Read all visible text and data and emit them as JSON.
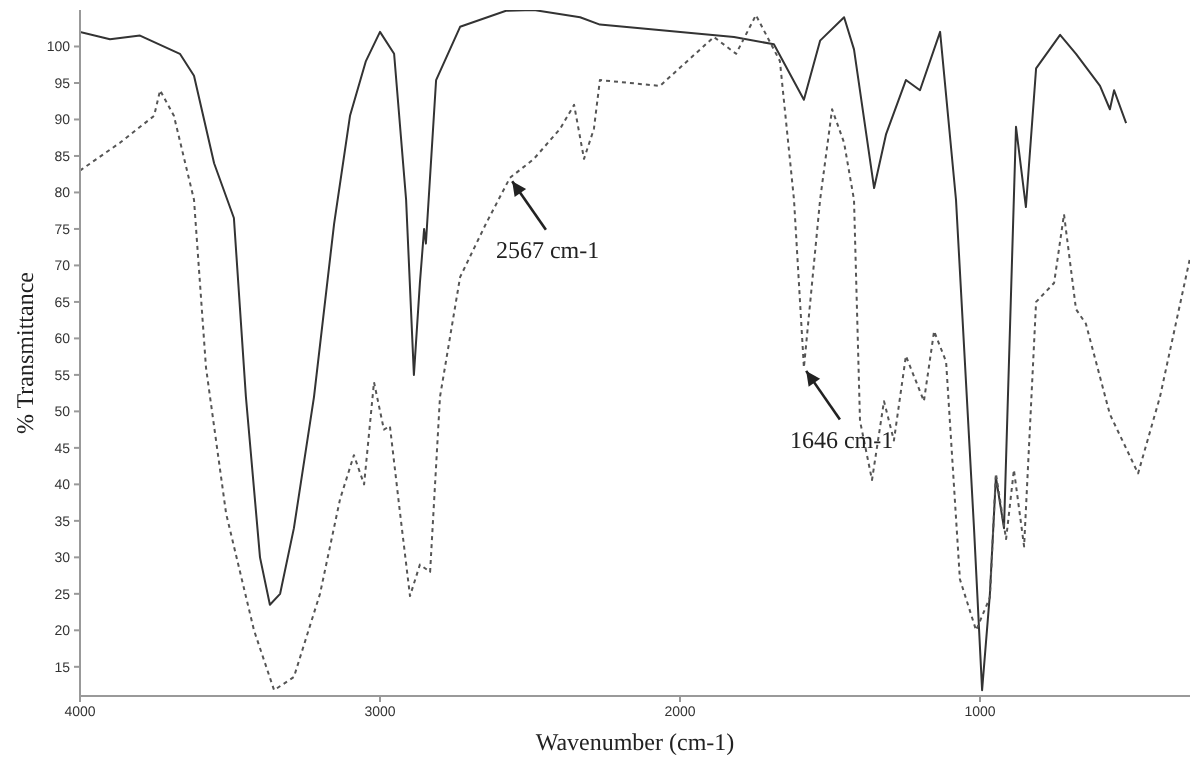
{
  "chart_data": {
    "type": "line",
    "xlabel": "Wavenumber (cm-1)",
    "ylabel": "% Transmittance",
    "xlim": [
      4000,
      300
    ],
    "xticks": [
      4000,
      3000,
      2000,
      1000
    ],
    "ylim": [
      11,
      105
    ],
    "yticks": [
      15,
      20,
      25,
      30,
      35,
      40,
      45,
      50,
      55,
      60,
      65,
      70,
      75,
      80,
      85,
      90,
      95,
      100
    ],
    "marker": "none",
    "series": [
      {
        "color": "#333333",
        "line_style": "solid",
        "x": [
          4000,
          3900,
          3800,
          3667,
          3620,
          3553,
          3487,
          3447,
          3400,
          3367,
          3333,
          3287,
          3220,
          3153,
          3100,
          3047,
          3000,
          2953,
          2913,
          2887,
          2867,
          2853,
          2847,
          2813,
          2733,
          2580,
          2487,
          2333,
          2267,
          1820,
          1687,
          1587,
          1533,
          1453,
          1420,
          1353,
          1313,
          1247,
          1200,
          1133,
          1080,
          1020,
          993,
          967,
          947,
          920,
          880,
          847,
          813,
          733,
          680,
          600,
          567,
          553,
          513
        ],
        "values": [
          102,
          101,
          101.5,
          99,
          96,
          84,
          76.5,
          52,
          30,
          23.5,
          25,
          34,
          52,
          75.7,
          90.5,
          98,
          102,
          99,
          79,
          55,
          67.6,
          75,
          73,
          95.4,
          102.7,
          104.9,
          105,
          104,
          103,
          101.3,
          100.3,
          92.7,
          100.8,
          104,
          99.6,
          80.6,
          88,
          95.4,
          94,
          102,
          79,
          34,
          11.8,
          25,
          41,
          34,
          89,
          78,
          97,
          101.6,
          99,
          94.6,
          91.4,
          94,
          89.5
        ]
      },
      {
        "color": "#555555",
        "line_style": "dotted",
        "x": [
          4000,
          3867,
          3753,
          3733,
          3687,
          3620,
          3580,
          3513,
          3420,
          3353,
          3287,
          3200,
          3133,
          3087,
          3053,
          3020,
          2987,
          2967,
          2933,
          2900,
          2867,
          2833,
          2800,
          2733,
          2647,
          2567,
          2487,
          2400,
          2353,
          2320,
          2287,
          2267,
          2067,
          1887,
          1813,
          1747,
          1667,
          1620,
          1587,
          1533,
          1493,
          1453,
          1420,
          1400,
          1360,
          1320,
          1287,
          1247,
          1187,
          1153,
          1113,
          1067,
          1013,
          967,
          947,
          913,
          887,
          853,
          813,
          753,
          720,
          680,
          647,
          567,
          473,
          400,
          300
        ],
        "values": [
          83,
          86.8,
          90.5,
          94,
          90.5,
          79,
          56,
          36,
          20,
          11.8,
          13.6,
          25,
          38,
          44,
          40,
          54,
          47.5,
          48,
          36,
          24.7,
          29,
          28,
          52,
          68.4,
          75.7,
          82,
          84.6,
          88.7,
          92,
          84.6,
          88.7,
          95.4,
          94.6,
          101.3,
          99,
          104.3,
          98,
          79,
          56,
          79,
          91.4,
          86.8,
          79,
          48.7,
          40.6,
          51.4,
          46,
          57.6,
          51.4,
          61,
          56.8,
          27,
          20,
          24.5,
          41.5,
          32.5,
          42,
          31.5,
          65,
          67.6,
          77,
          64,
          62,
          49.6,
          41.5,
          52,
          71
        ]
      }
    ],
    "annotations": [
      {
        "text": "2567 cm-1",
        "x": 2567,
        "y": 82
      },
      {
        "text": "1646 cm-1",
        "x": 1587,
        "y": 56
      }
    ]
  }
}
